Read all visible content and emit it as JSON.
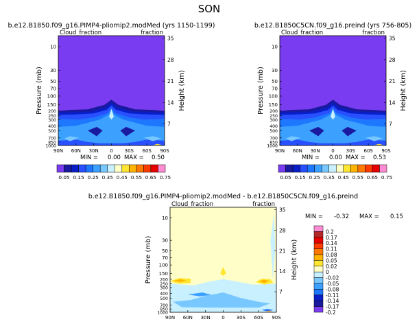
{
  "page_title": "SON",
  "colors": {
    "fill_top": "#7a3cf0",
    "fill_diff": "#fffec8"
  },
  "chart_data": [
    {
      "type": "heatmap",
      "title": "b.e12.B1850.f09_g16.PIMP4-pliomip2.modMed (yrs 1150-1199)",
      "left_label": "Cloud_fraction",
      "right_label": "fraction",
      "ylabel": "Pressure (mb)",
      "y2label": "Height (km)",
      "x_ticks": [
        "90N",
        "60N",
        "30N",
        "0",
        "30S",
        "60S",
        "90S"
      ],
      "y_ticks": [
        10,
        30,
        50,
        70,
        100,
        150,
        200,
        250,
        300,
        400,
        500,
        700,
        850,
        1000
      ],
      "y2_ticks": [
        35,
        28,
        21,
        14,
        7
      ],
      "stats": {
        "min_label": "MIN =",
        "min": "0.00",
        "max_label": "MAX =",
        "max": "0.50"
      },
      "colorbar": {
        "labels": [
          "0.05",
          "0.15",
          "0.25",
          "0.35",
          "0.45",
          "0.55",
          "0.65",
          "0.75"
        ],
        "colors": [
          "#7a3cf0",
          "#1a1aa0",
          "#0a1ec8",
          "#2850ff",
          "#1e78ff",
          "#3ca0ff",
          "#78c8ff",
          "#c8f0ff",
          "#ffffc8",
          "#ffe632",
          "#ffb400",
          "#ff7800",
          "#ff3c00",
          "#e60000",
          "#ff8cd2"
        ]
      }
    },
    {
      "type": "heatmap",
      "title": "b.e12.B1850C5CN.f09_g16.preind (yrs 756-805)",
      "left_label": "Cloud_fraction",
      "right_label": "fraction",
      "ylabel": "Pressure (mb)",
      "y2label": "Height (km)",
      "x_ticks": [
        "90N",
        "60N",
        "30N",
        "0",
        "30S",
        "60S",
        "90S"
      ],
      "y_ticks": [
        10,
        30,
        50,
        70,
        100,
        150,
        200,
        250,
        300,
        400,
        500,
        700,
        850,
        1000
      ],
      "y2_ticks": [
        35,
        28,
        21,
        14,
        7
      ],
      "stats": {
        "min_label": "MIN =",
        "min": "0.00",
        "max_label": "MAX =",
        "max": "0.53"
      },
      "colorbar": {
        "labels": [
          "0.05",
          "0.15",
          "0.25",
          "0.35",
          "0.45",
          "0.55",
          "0.65",
          "0.75"
        ],
        "colors": [
          "#7a3cf0",
          "#1a1aa0",
          "#0a1ec8",
          "#2850ff",
          "#1e78ff",
          "#3ca0ff",
          "#78c8ff",
          "#c8f0ff",
          "#ffffc8",
          "#ffe632",
          "#ffb400",
          "#ff7800",
          "#ff3c00",
          "#e60000",
          "#ff8cd2"
        ]
      }
    },
    {
      "type": "heatmap",
      "title": "b.e12.B1850.f09_g16.PIMP4-pliomip2.modMed - b.e12.B1850C5CN.f09_g16.preind",
      "left_label": "Cloud_fraction",
      "right_label": "fraction",
      "ylabel": "Pressure (mb)",
      "y2label": "Height (km)",
      "x_ticks": [
        "90N",
        "60N",
        "30N",
        "0",
        "30S",
        "60S",
        "90S"
      ],
      "y_ticks": [
        10,
        30,
        50,
        70,
        100,
        150,
        200,
        250,
        300,
        400,
        500,
        700,
        850,
        1000
      ],
      "y2_ticks": [
        35,
        28,
        21,
        14,
        7
      ],
      "stats": {
        "min_label": "MIN =",
        "min": "-0.32",
        "max_label": "MAX =",
        "max": "0.15"
      },
      "colorbar": {
        "labels": [
          "0.2",
          "0.17",
          "0.14",
          "0.11",
          "0.08",
          "0.05",
          "0.02",
          "0",
          "-0.02",
          "-0.05",
          "-0.08",
          "-0.11",
          "-0.14",
          "-0.17",
          "-0.2"
        ],
        "colors": [
          "#ff8cd2",
          "#b42828",
          "#e60000",
          "#ff3c00",
          "#ff7800",
          "#ffb400",
          "#ffe632",
          "#ffffc8",
          "#c8f0ff",
          "#78c8ff",
          "#3ca0ff",
          "#1e78ff",
          "#0a1ec8",
          "#1a1aa0",
          "#7a3cf0"
        ]
      }
    }
  ]
}
